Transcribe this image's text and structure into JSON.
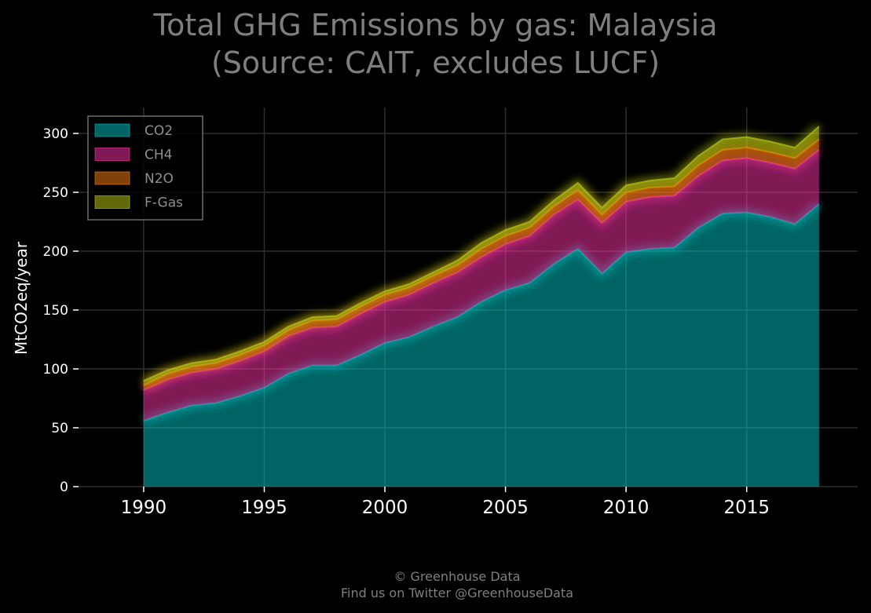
{
  "title_line1": "Total GHG Emissions by gas: Malaysia",
  "title_line2": "(Source: CAIT, excludes LUCF)",
  "footer_line1": "© Greenhouse Data",
  "footer_line2": "Find us on Twitter @GreenhouseData",
  "chart_data": {
    "type": "area",
    "stacked": true,
    "title": "Total GHG Emissions by gas: Malaysia (Source: CAIT, excludes LUCF)",
    "xlabel": "",
    "ylabel": "MtCO2eq/year",
    "x": [
      1990,
      1991,
      1992,
      1993,
      1994,
      1995,
      1996,
      1997,
      1998,
      1999,
      2000,
      2001,
      2002,
      2003,
      2004,
      2005,
      2006,
      2007,
      2008,
      2009,
      2010,
      2011,
      2012,
      2013,
      2014,
      2015,
      2016,
      2017,
      2018
    ],
    "xlim": [
      1987.3,
      2019.6
    ],
    "ylim": [
      0,
      322
    ],
    "xticks": [
      1990,
      1995,
      2000,
      2005,
      2010,
      2015
    ],
    "yticks": [
      0,
      50,
      100,
      150,
      200,
      250,
      300
    ],
    "grid": true,
    "legend_position": "top-left",
    "series": [
      {
        "name": "CO2",
        "color": "#00c8c8",
        "values": [
          56,
          63,
          69,
          71,
          77,
          84,
          96,
          103,
          103,
          112,
          122,
          127,
          136,
          144,
          157,
          167,
          173,
          189,
          202,
          181,
          199,
          202,
          203,
          220,
          232,
          233,
          229,
          223,
          240
        ]
      },
      {
        "name": "CH4",
        "color": "#ff33aa",
        "values": [
          26,
          28,
          28,
          29,
          30,
          31,
          32,
          32,
          33,
          35,
          35,
          36,
          37,
          38,
          38,
          39,
          40,
          42,
          42,
          43,
          43,
          44,
          44,
          44,
          45,
          46,
          46,
          47,
          46
        ]
      },
      {
        "name": "N2O",
        "color": "#ff7f0e",
        "values": [
          4,
          5,
          5,
          5,
          5,
          5,
          5,
          6,
          6,
          6,
          6,
          6,
          6,
          6,
          7,
          7,
          7,
          7,
          8,
          7,
          8,
          8,
          8,
          9,
          9,
          9,
          9,
          9,
          9
        ]
      },
      {
        "name": "F-Gas",
        "color": "#bfd010",
        "values": [
          4,
          3,
          3,
          3,
          3,
          3,
          3,
          3,
          3,
          3,
          3,
          3,
          3,
          4,
          5,
          5,
          5,
          5,
          6,
          6,
          6,
          6,
          7,
          8,
          9,
          9,
          9,
          9,
          11
        ]
      }
    ]
  }
}
